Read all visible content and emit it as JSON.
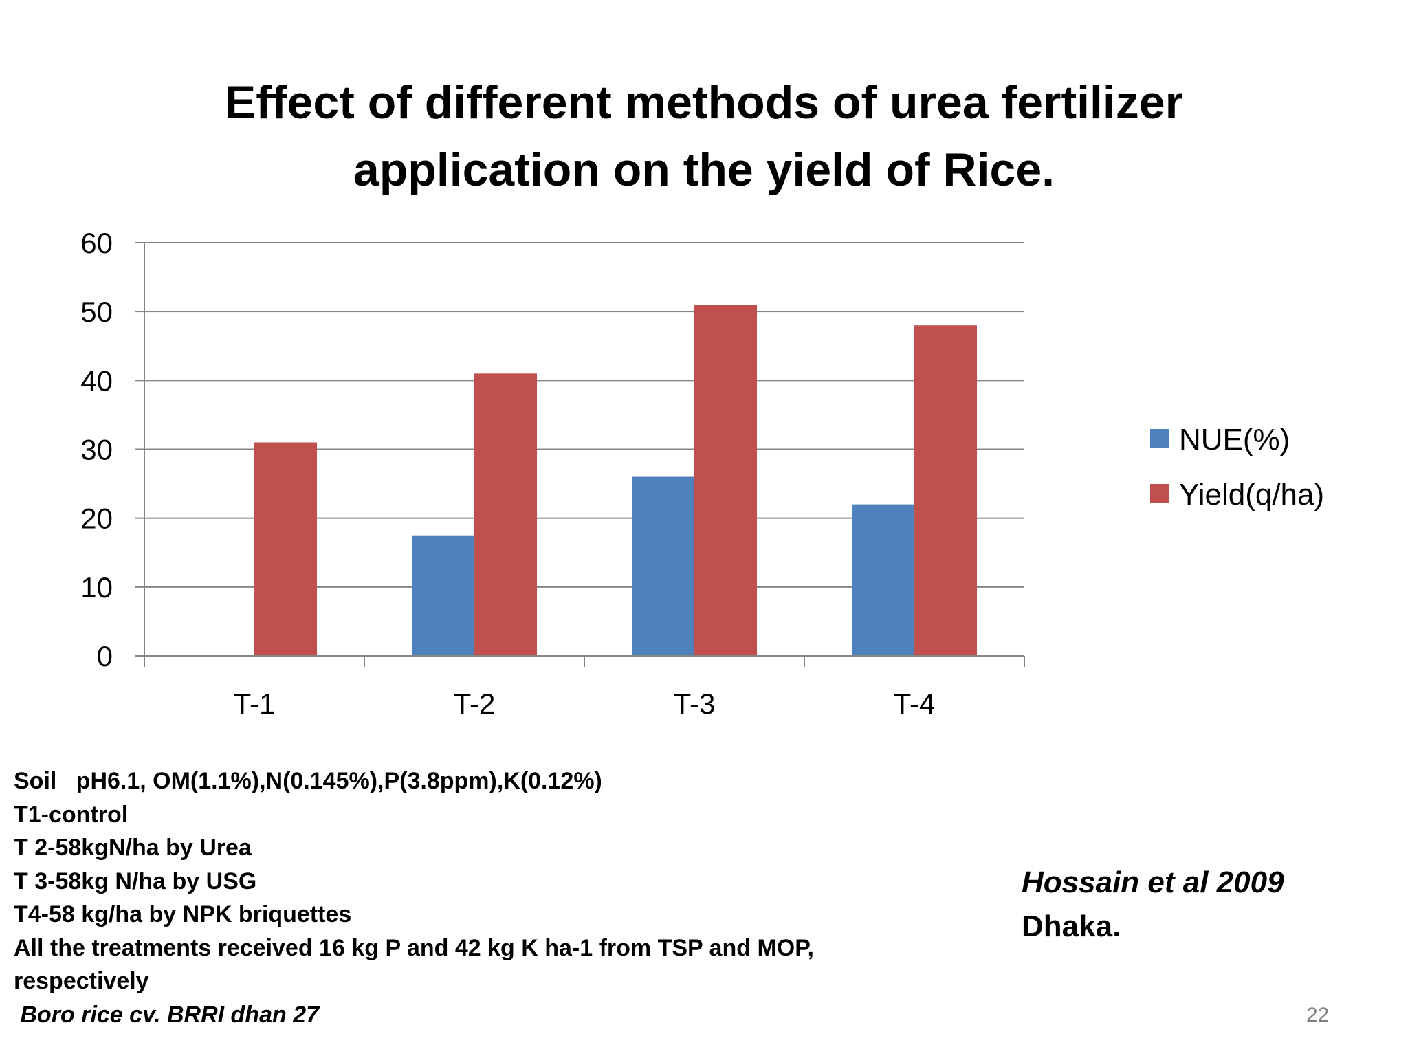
{
  "slide": {
    "title_lines": [
      "Effect of different methods of urea fertilizer",
      "application on the yield of Rice."
    ],
    "notes": [
      "Soil   pH6.1, OM(1.1%),N(0.145%),P(3.8ppm),K(0.12%)",
      "T1-control",
      "T 2-58kgN/ha by Urea",
      "T 3-58kg N/ha by USG",
      "T4-58 kg/ha by NPK briquettes",
      "All the treatments received 16 kg P and 42 kg K ha-1 from TSP and MOP,",
      "respectively",
      " Boro rice cv. BRRI dhan 27"
    ],
    "citation_author": "Hossain et al 2009",
    "citation_place": "Dhaka.",
    "page_number": "22"
  },
  "chart_data": {
    "type": "bar",
    "categories": [
      "T-1",
      "T-2",
      "T-3",
      "T-4"
    ],
    "series": [
      {
        "name": "NUE(%)",
        "values": [
          0,
          17.5,
          26,
          22
        ],
        "color": "#4F81BD"
      },
      {
        "name": "Yield(q/ha)",
        "values": [
          31,
          41,
          51,
          48
        ],
        "color": "#C0504D"
      }
    ],
    "ylim": [
      0,
      60
    ],
    "yticks": [
      0,
      10,
      20,
      30,
      40,
      50,
      60
    ],
    "grid": true,
    "legend_position": "right"
  }
}
